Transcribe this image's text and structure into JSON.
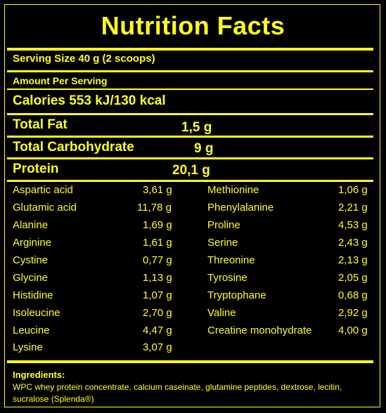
{
  "title": "Nutrition Facts",
  "serving_size": "Serving Size 40 g (2 scoops)",
  "amount_per_serving": "Amount Per Serving",
  "calories": "Calories 553 kJ/130 kcal",
  "macros": [
    {
      "name": "Total Fat",
      "value": "1,5 g"
    },
    {
      "name": "Total Carbohydrate",
      "value": "9 g"
    },
    {
      "name": "Protein",
      "value": "20,1 g"
    }
  ],
  "amino_left": [
    {
      "name": "Aspartic acid",
      "value": "3,61 g"
    },
    {
      "name": "Glutamic acid",
      "value": "11,78 g"
    },
    {
      "name": "Alanine",
      "value": "1,69 g"
    },
    {
      "name": "Arginine",
      "value": "1,61 g"
    },
    {
      "name": "Cystine",
      "value": "0,77 g"
    },
    {
      "name": "Glycine",
      "value": "1,13 g"
    },
    {
      "name": "Histidine",
      "value": "1,07 g"
    },
    {
      "name": "Isoleucine",
      "value": "2,70 g"
    },
    {
      "name": "Leucine",
      "value": "4,47 g"
    },
    {
      "name": "Lysine",
      "value": "3,07 g"
    }
  ],
  "amino_right": [
    {
      "name": "Methionine",
      "value": "1,06 g"
    },
    {
      "name": "Phenylalanine",
      "value": "2,21 g"
    },
    {
      "name": "Proline",
      "value": "4,53 g"
    },
    {
      "name": "Serine",
      "value": "2,43 g"
    },
    {
      "name": "Threonine",
      "value": "2,13 g"
    },
    {
      "name": "Tyrosine",
      "value": "2,05 g"
    },
    {
      "name": "Tryptophane",
      "value": "0,68 g"
    },
    {
      "name": "Valine",
      "value": "2,92 g"
    },
    {
      "name": "Creatine monohydrate",
      "value": "4,00 g"
    }
  ],
  "ingredients_label": "Ingredients:",
  "ingredients_text": "WPC whey protein concentrate, calcium caseinate, glutamine peptides, dextrose, lecitin, sucralose (Splenda®)",
  "colors": {
    "background": "#000000",
    "text": "#ffff1a"
  }
}
